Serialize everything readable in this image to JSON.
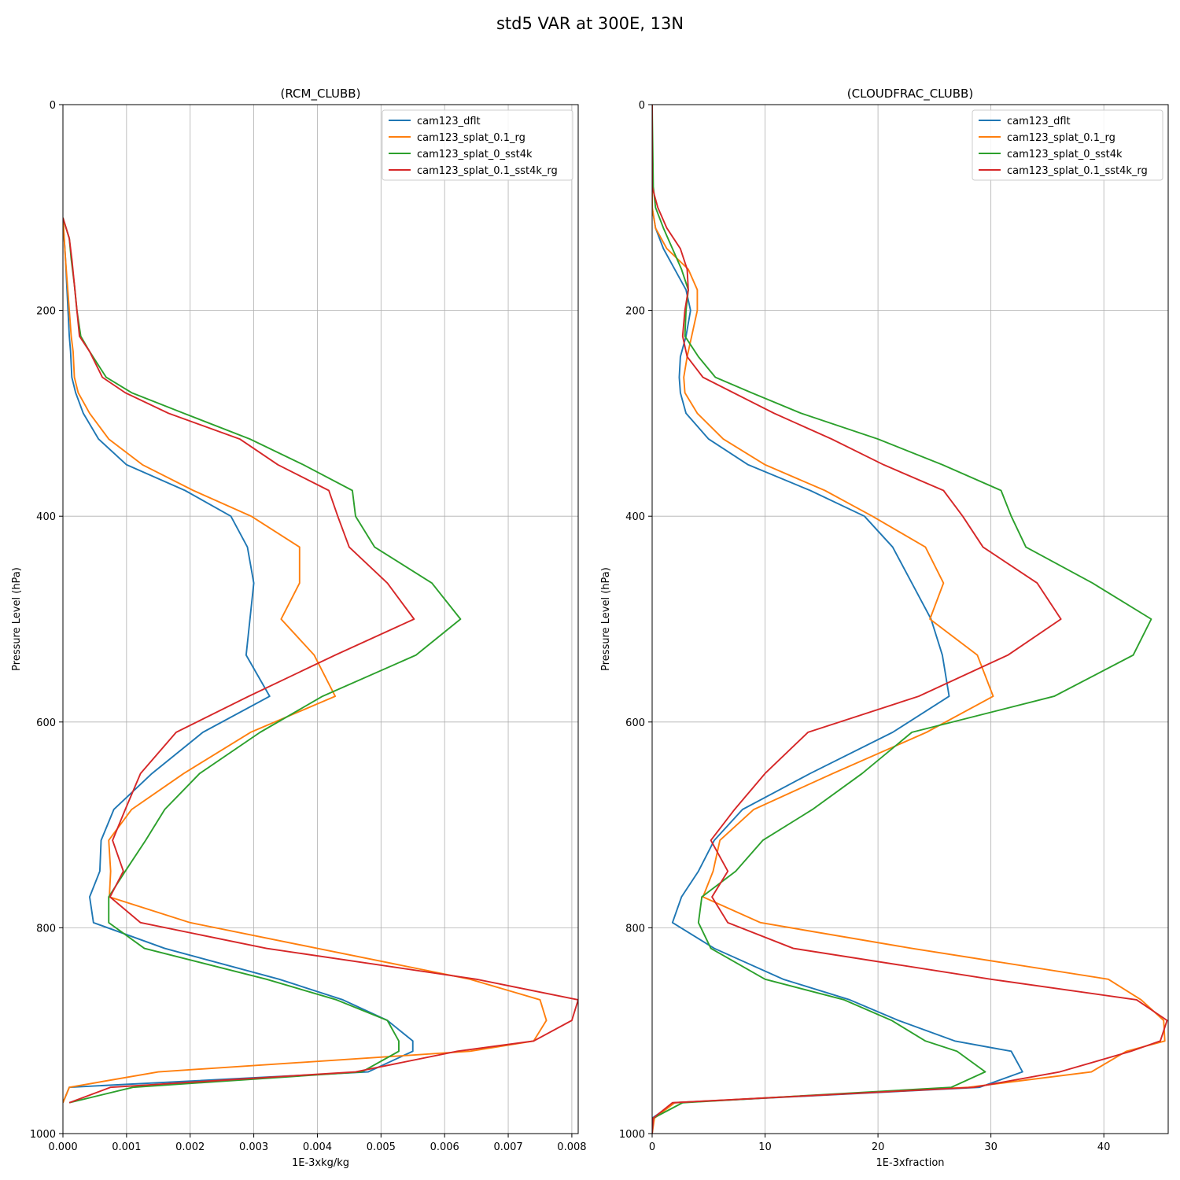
{
  "figure": {
    "suptitle": "std5 VAR at 300E, 13N"
  },
  "chart_data": [
    {
      "type": "line",
      "title": "(RCM_CLUBB)",
      "xlabel": "1E-3xkg/kg",
      "ylabel": "Pressure Level (hPa)",
      "xlim": [
        0,
        0.0081
      ],
      "ylim": [
        1000,
        0
      ],
      "xticks": [
        0,
        0.001,
        0.002,
        0.003,
        0.004,
        0.005,
        0.006,
        0.007,
        0.008
      ],
      "xtick_labels": [
        "0.000",
        "0.001",
        "0.002",
        "0.003",
        "0.004",
        "0.005",
        "0.006",
        "0.007",
        "0.008"
      ],
      "yticks": [
        0,
        200,
        400,
        600,
        800,
        1000
      ],
      "ytick_labels": [
        "0",
        "200",
        "400",
        "600",
        "800",
        "1000"
      ],
      "grid": true,
      "legend": "top-right",
      "y": [
        110,
        130,
        150,
        175,
        200,
        225,
        240,
        265,
        280,
        300,
        325,
        350,
        375,
        400,
        430,
        465,
        500,
        535,
        575,
        610,
        650,
        685,
        715,
        745,
        770,
        795,
        820,
        850,
        870,
        890,
        910,
        920,
        940,
        955,
        970
      ],
      "series": [
        {
          "name": "cam123_dflt",
          "color": "#1f77b4",
          "values": [
            0,
            2e-05,
            4e-05,
            6e-05,
            8e-05,
            0.0001,
            0.00012,
            0.00014,
            0.0002,
            0.00032,
            0.00056,
            0.001,
            0.00192,
            0.00264,
            0.0029,
            0.003,
            0.00294,
            0.00288,
            0.00325,
            0.0022,
            0.0014,
            0.0008,
            0.0006,
            0.00058,
            0.00042,
            0.00048,
            0.0016,
            0.0034,
            0.0044,
            0.0051,
            0.0055,
            0.0055,
            0.0048,
            0.0001,
            0
          ]
        },
        {
          "name": "cam123_splat_0.1_rg",
          "color": "#ff7f0e",
          "values": [
            0,
            2e-05,
            4e-05,
            7e-05,
            0.0001,
            0.00013,
            0.00016,
            0.00018,
            0.00024,
            0.00042,
            0.00072,
            0.00125,
            0.00205,
            0.00296,
            0.00372,
            0.00372,
            0.00343,
            0.00395,
            0.00428,
            0.00295,
            0.0019,
            0.00108,
            0.00072,
            0.00075,
            0.00073,
            0.002,
            0.004,
            0.0064,
            0.0075,
            0.0076,
            0.0074,
            0.0064,
            0.0015,
            0.0001,
            0
          ]
        },
        {
          "name": "cam123_splat_0_sst4k",
          "color": "#2ca02c",
          "values": [
            0,
            0.0001,
            0.00013,
            0.00018,
            0.00022,
            0.00028,
            0.00042,
            0.00068,
            0.00108,
            0.0019,
            0.00294,
            0.00378,
            0.00455,
            0.0046,
            0.0049,
            0.0058,
            0.00625,
            0.00555,
            0.00408,
            0.0031,
            0.00215,
            0.0016,
            0.0013,
            0.00098,
            0.00072,
            0.00072,
            0.00128,
            0.0032,
            0.0043,
            0.0051,
            0.00528,
            0.00528,
            0.0047,
            0.0011,
            0.0001
          ]
        },
        {
          "name": "cam123_splat_0.1_sst4k_rg",
          "color": "#d62728",
          "values": [
            0,
            0.0001,
            0.00014,
            0.00018,
            0.00022,
            0.00026,
            0.00042,
            0.00062,
            0.00098,
            0.00166,
            0.00278,
            0.00338,
            0.00418,
            0.00432,
            0.0045,
            0.0051,
            0.00552,
            0.00428,
            0.00292,
            0.00178,
            0.00122,
            0.00098,
            0.00078,
            0.00095,
            0.00074,
            0.00122,
            0.0032,
            0.0065,
            0.0081,
            0.008,
            0.0074,
            0.0062,
            0.0046,
            0.00075,
            0.0001
          ]
        }
      ]
    },
    {
      "type": "line",
      "title": "(CLOUDFRAC_CLUBB)",
      "xlabel": "1E-3xfraction",
      "ylabel": "Pressure Level (hPa)",
      "xlim": [
        0,
        45.7
      ],
      "ylim": [
        1000,
        0
      ],
      "xticks": [
        0,
        10,
        20,
        30,
        40
      ],
      "xtick_labels": [
        "0",
        "10",
        "20",
        "30",
        "40"
      ],
      "yticks": [
        0,
        200,
        400,
        600,
        800,
        1000
      ],
      "ytick_labels": [
        "0",
        "200",
        "400",
        "600",
        "800",
        "1000"
      ],
      "grid": true,
      "legend": "top-right",
      "y": [
        0,
        80,
        100,
        120,
        140,
        160,
        180,
        200,
        225,
        245,
        265,
        280,
        300,
        325,
        350,
        375,
        400,
        430,
        465,
        500,
        535,
        575,
        610,
        650,
        685,
        715,
        745,
        770,
        795,
        820,
        850,
        870,
        890,
        910,
        920,
        940,
        955,
        970,
        985,
        1000
      ],
      "series": [
        {
          "name": "cam123_dflt",
          "color": "#1f77b4",
          "values": [
            0,
            0,
            0,
            0.3,
            1,
            2,
            3,
            3.4,
            3,
            2.5,
            2.4,
            2.5,
            3,
            5,
            8.5,
            14,
            18.8,
            21.3,
            23,
            24.7,
            25.7,
            26.3,
            21.3,
            14,
            8,
            5.5,
            4.1,
            2.6,
            1.8,
            5.5,
            11.6,
            17.5,
            21.8,
            26.8,
            31.8,
            32.8,
            29,
            2,
            0,
            0
          ]
        },
        {
          "name": "cam123_splat_0.1_rg",
          "color": "#ff7f0e",
          "values": [
            0,
            0,
            0,
            0.3,
            1.3,
            3.2,
            4,
            4,
            3.5,
            3.1,
            2.8,
            2.9,
            4,
            6.3,
            10,
            15.3,
            19.5,
            24.2,
            25.8,
            24.6,
            28.8,
            30.2,
            24.3,
            16,
            9,
            6,
            5.4,
            4.5,
            9.6,
            23,
            40.4,
            43.3,
            45.3,
            45.4,
            42,
            38.9,
            28,
            2,
            0.2,
            0
          ]
        },
        {
          "name": "cam123_splat_0_sst4k",
          "color": "#2ca02c",
          "values": [
            0,
            0.1,
            0.3,
            1,
            1.8,
            2.6,
            3.2,
            3,
            2.9,
            4.1,
            5.6,
            8.8,
            13.2,
            20,
            25.7,
            30.9,
            31.8,
            33.1,
            39,
            44.2,
            42.6,
            35.6,
            23,
            18.6,
            14.2,
            9.8,
            7.4,
            4.4,
            4.1,
            5.2,
            10,
            17,
            21.2,
            24.2,
            27,
            29.5,
            26.5,
            2.7,
            0.1,
            0
          ]
        },
        {
          "name": "cam123_splat_0.1_sst4k_rg",
          "color": "#d62728",
          "values": [
            0,
            0,
            0.5,
            1.3,
            2.5,
            3.1,
            3.2,
            2.9,
            2.7,
            3.1,
            4.5,
            7.2,
            10.8,
            15.9,
            20.5,
            25.8,
            27.5,
            29.3,
            34.1,
            36.2,
            31.5,
            23.6,
            13.8,
            10,
            7.3,
            5.2,
            6.7,
            5.3,
            6.7,
            12.5,
            30,
            42.9,
            45.6,
            45,
            42.4,
            36.1,
            28.5,
            1.8,
            0.1,
            0
          ]
        }
      ]
    }
  ]
}
